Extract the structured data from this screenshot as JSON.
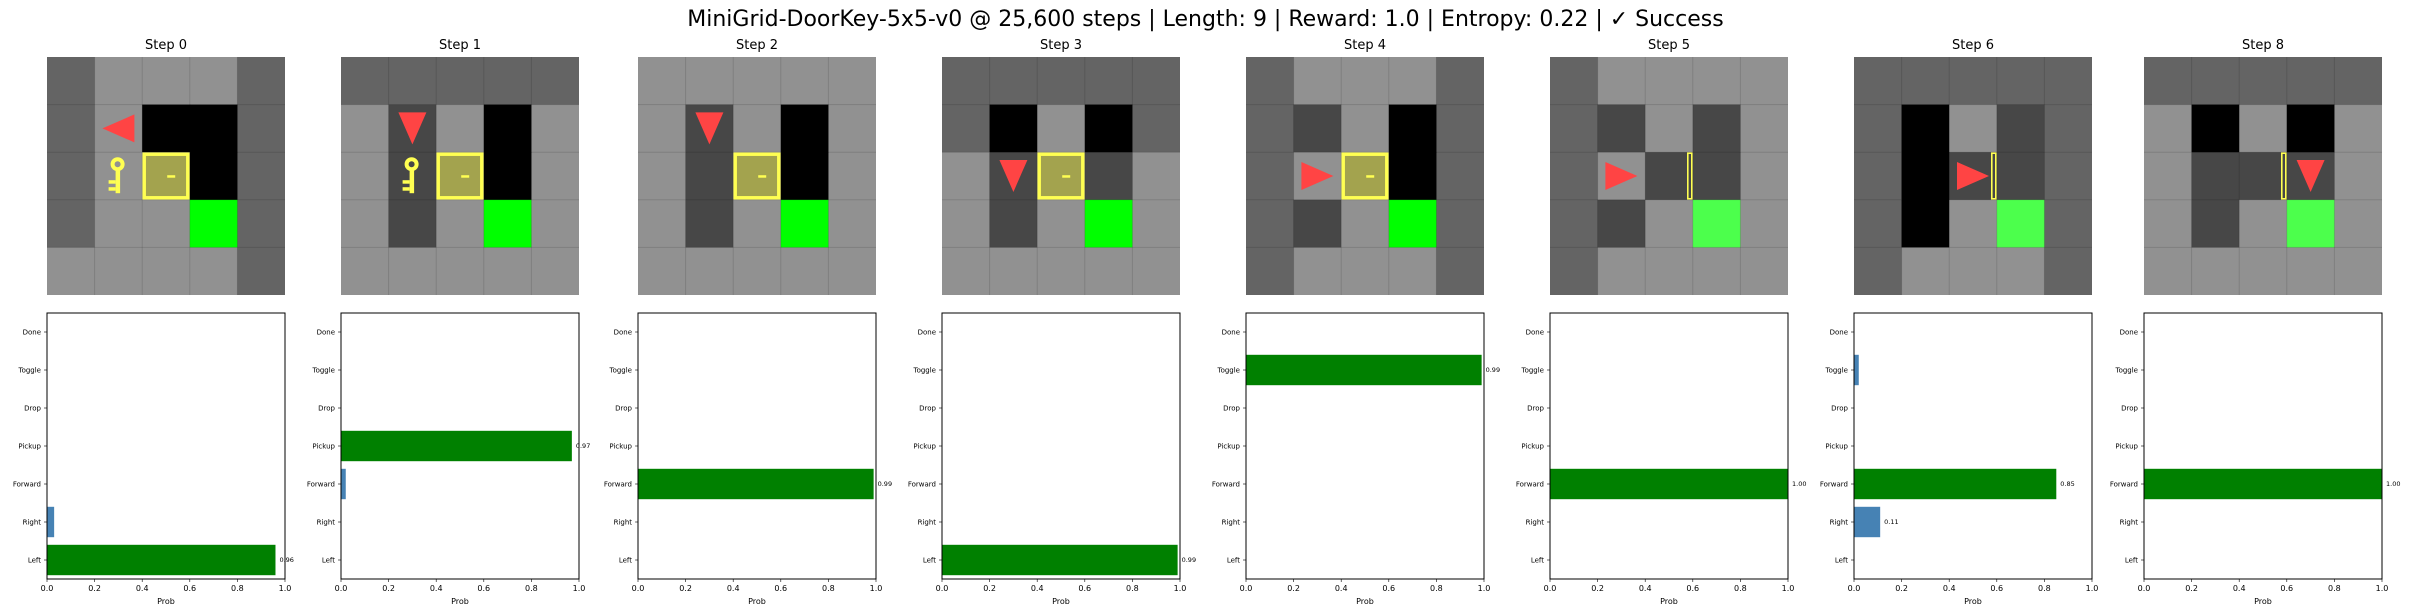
{
  "title": "MiniGrid-DoorKey-5x5-v0 @ 25,600 steps | Length: 9 | Reward: 1.0 | Entropy: 0.22 | ✓ Success",
  "colors": {
    "bar_max": "#008000",
    "bar_other": "#4682b4",
    "wall": "#646464",
    "floor_lit": "#919191",
    "floor_dark": "#474747",
    "unseen": "#000000",
    "goal": "#00ff00",
    "goal_lit": "#4cff4c",
    "agent": "#ff4444",
    "door_key": "#ffff52"
  },
  "grid_legend": {
    "W": "wall",
    "L": "floor-visible",
    "D": "floor-not-visible",
    "B": "unseen",
    "G": "goal",
    "Y": "goal-visible"
  },
  "actions": [
    "Left",
    "Right",
    "Forward",
    "Pickup",
    "Drop",
    "Toggle",
    "Done"
  ],
  "xticks": [
    "0.0",
    "0.2",
    "0.4",
    "0.6",
    "0.8",
    "1.0"
  ],
  "xlabel": "Prob",
  "panels": [
    {
      "title": "Step 0",
      "grid": [
        "WLLLW",
        "WLBBW",
        "WLLBW",
        "WLLGW",
        "LLLLW"
      ],
      "agent": {
        "cell": [
          1,
          1
        ],
        "dir": "left"
      },
      "key": [
        1,
        2
      ],
      "door": {
        "cell": [
          2,
          2
        ],
        "state": "locked"
      },
      "chart_data": {
        "type": "bar",
        "categories": [
          "Left",
          "Right",
          "Forward",
          "Pickup",
          "Drop",
          "Toggle",
          "Done"
        ],
        "values": [
          0.96,
          0.03,
          0,
          0,
          0,
          0,
          0
        ],
        "label": "0.96",
        "xlim": [
          0,
          1
        ],
        "xlabel": "Prob"
      }
    },
    {
      "title": "Step 1",
      "grid": [
        "WWWWW",
        "LDLBL",
        "LDLBL",
        "LDLGL",
        "LLLLL"
      ],
      "agent": {
        "cell": [
          1,
          1
        ],
        "dir": "down"
      },
      "key": [
        1,
        2
      ],
      "door": {
        "cell": [
          2,
          2
        ],
        "state": "locked"
      },
      "chart_data": {
        "type": "bar",
        "categories": [
          "Left",
          "Right",
          "Forward",
          "Pickup",
          "Drop",
          "Toggle",
          "Done"
        ],
        "values": [
          0,
          0,
          0.02,
          0.97,
          0,
          0,
          0
        ],
        "label": "0.97",
        "xlim": [
          0,
          1
        ],
        "xlabel": "Prob"
      }
    },
    {
      "title": "Step 2",
      "grid": [
        "LLLLL",
        "LDLBL",
        "LDLBL",
        "LDLGL",
        "LLLLL"
      ],
      "agent": {
        "cell": [
          1,
          1
        ],
        "dir": "down"
      },
      "key": null,
      "door": {
        "cell": [
          2,
          2
        ],
        "state": "locked"
      },
      "chart_data": {
        "type": "bar",
        "categories": [
          "Left",
          "Right",
          "Forward",
          "Pickup",
          "Drop",
          "Toggle",
          "Done"
        ],
        "values": [
          0,
          0,
          0.99,
          0,
          0,
          0,
          0
        ],
        "label": "0.99",
        "xlim": [
          0,
          1
        ],
        "xlabel": "Prob"
      }
    },
    {
      "title": "Step 3",
      "grid": [
        "WWWWW",
        "WBLBW",
        "LDLDL",
        "LDLGL",
        "LLLLL"
      ],
      "agent": {
        "cell": [
          1,
          2
        ],
        "dir": "down"
      },
      "key": null,
      "door": {
        "cell": [
          2,
          2
        ],
        "state": "locked"
      },
      "chart_data": {
        "type": "bar",
        "categories": [
          "Left",
          "Right",
          "Forward",
          "Pickup",
          "Drop",
          "Toggle",
          "Done"
        ],
        "values": [
          0.99,
          0,
          0,
          0,
          0,
          0,
          0
        ],
        "label": "0.99",
        "xlim": [
          0,
          1
        ],
        "xlabel": "Prob"
      }
    },
    {
      "title": "Step 4",
      "grid": [
        "WLLLW",
        "WDLBW",
        "WLLBW",
        "WDLGW",
        "WLLLW"
      ],
      "agent": {
        "cell": [
          1,
          2
        ],
        "dir": "right"
      },
      "key": null,
      "door": {
        "cell": [
          2,
          2
        ],
        "state": "locked"
      },
      "chart_data": {
        "type": "bar",
        "categories": [
          "Left",
          "Right",
          "Forward",
          "Pickup",
          "Drop",
          "Toggle",
          "Done"
        ],
        "values": [
          0,
          0,
          0,
          0,
          0,
          0.99,
          0
        ],
        "label": "0.99",
        "xlim": [
          0,
          1
        ],
        "xlabel": "Prob"
      }
    },
    {
      "title": "Step 5",
      "grid": [
        "WLLLL",
        "WDLDL",
        "WLDDL",
        "WDLYL",
        "WLLLL"
      ],
      "agent": {
        "cell": [
          1,
          2
        ],
        "dir": "right"
      },
      "key": null,
      "door": {
        "cell": [
          2,
          2
        ],
        "state": "open"
      },
      "chart_data": {
        "type": "bar",
        "categories": [
          "Left",
          "Right",
          "Forward",
          "Pickup",
          "Drop",
          "Toggle",
          "Done"
        ],
        "values": [
          0,
          0,
          1.0,
          0,
          0,
          0,
          0
        ],
        "label": "1.00",
        "xlim": [
          0,
          1
        ],
        "xlabel": "Prob"
      }
    },
    {
      "title": "Step 6",
      "grid": [
        "WWWWW",
        "WBLDW",
        "WBDDW",
        "WBLYW",
        "WLLLW"
      ],
      "agent": {
        "cell": [
          2,
          2
        ],
        "dir": "right"
      },
      "key": null,
      "door": {
        "cell": [
          2,
          2
        ],
        "state": "open"
      },
      "chart_data": {
        "type": "bar",
        "categories": [
          "Left",
          "Right",
          "Forward",
          "Pickup",
          "Drop",
          "Toggle",
          "Done"
        ],
        "values": [
          0,
          0.11,
          0.85,
          0,
          0,
          0.02,
          0
        ],
        "label": "0.85",
        "label2": "0.11",
        "xlim": [
          0,
          1
        ],
        "xlabel": "Prob"
      }
    },
    {
      "title": "Step 8",
      "grid": [
        "WWWWW",
        "LBLBL",
        "LDDDL",
        "LDLYL",
        "LLLLL"
      ],
      "agent": {
        "cell": [
          3,
          2
        ],
        "dir": "down"
      },
      "key": null,
      "door": {
        "cell": [
          2,
          2
        ],
        "state": "open"
      },
      "chart_data": {
        "type": "bar",
        "categories": [
          "Left",
          "Right",
          "Forward",
          "Pickup",
          "Drop",
          "Toggle",
          "Done"
        ],
        "values": [
          0,
          0,
          1.0,
          0,
          0,
          0,
          0
        ],
        "label": "1.00",
        "xlim": [
          0,
          1
        ],
        "xlabel": "Prob"
      }
    }
  ]
}
